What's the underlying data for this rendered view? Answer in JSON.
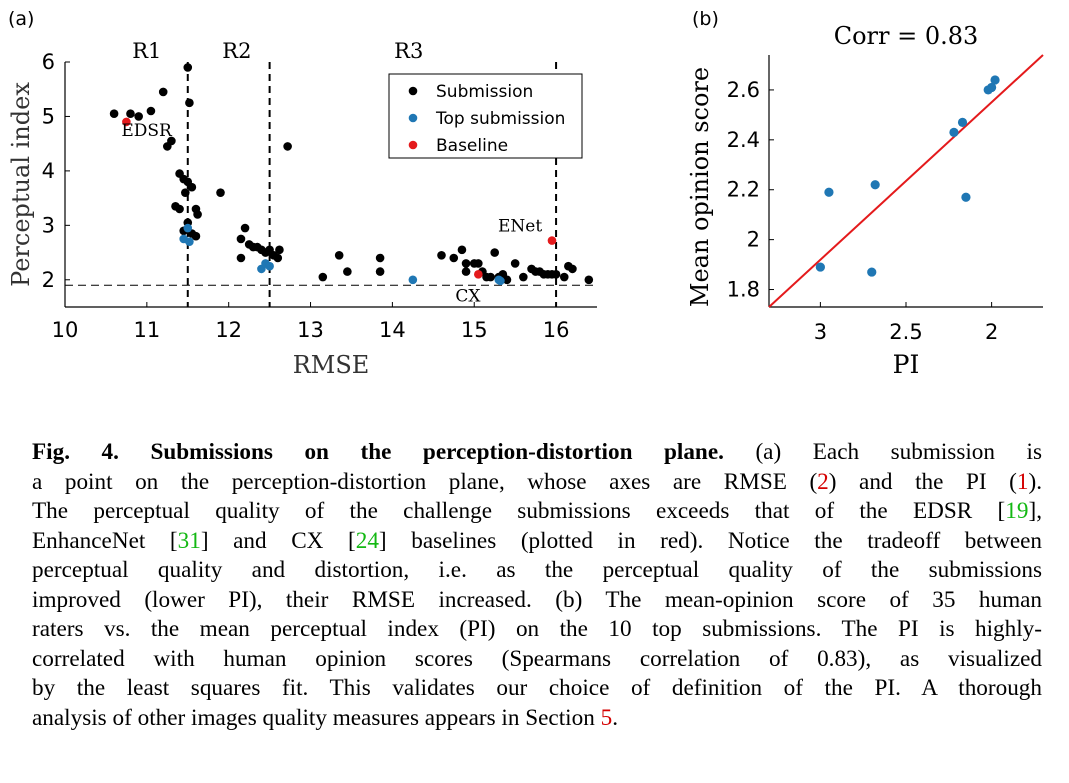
{
  "panel_a_label": "(a)",
  "panel_b_label": "(b)",
  "chart_data": [
    {
      "type": "scatter",
      "title": "",
      "xlabel": "RMSE",
      "ylabel": "Perceptual index",
      "xlim": [
        10,
        16.5
      ],
      "ylim": [
        1.5,
        6
      ],
      "xticks": [
        "10",
        "11",
        "12",
        "13",
        "14",
        "15",
        "16"
      ],
      "yticks": [
        "2",
        "3",
        "4",
        "5",
        "6"
      ],
      "grid": false,
      "legend_position": "top-right",
      "regions": [
        {
          "label": "R1",
          "x_center": 11.0
        },
        {
          "label": "R2",
          "x_center": 12.1
        },
        {
          "label": "R3",
          "x_center": 14.2
        }
      ],
      "vertical_lines": [
        11.5,
        12.5,
        16.0
      ],
      "horizontal_line": 1.9,
      "series": [
        {
          "name": "Submission",
          "color": "#000000",
          "points": [
            [
              10.6,
              5.05
            ],
            [
              10.8,
              5.05
            ],
            [
              10.9,
              5.0
            ],
            [
              11.05,
              5.1
            ],
            [
              11.2,
              5.45
            ],
            [
              11.25,
              4.45
            ],
            [
              11.3,
              4.55
            ],
            [
              11.5,
              5.9
            ],
            [
              11.52,
              5.25
            ],
            [
              11.4,
              3.95
            ],
            [
              11.45,
              3.85
            ],
            [
              11.5,
              3.8
            ],
            [
              11.55,
              3.7
            ],
            [
              11.47,
              3.6
            ],
            [
              11.35,
              3.35
            ],
            [
              11.4,
              3.3
            ],
            [
              11.6,
              3.3
            ],
            [
              11.62,
              3.2
            ],
            [
              11.5,
              3.05
            ],
            [
              11.45,
              2.9
            ],
            [
              11.55,
              2.85
            ],
            [
              11.6,
              2.8
            ],
            [
              11.9,
              3.6
            ],
            [
              12.72,
              4.45
            ],
            [
              12.15,
              2.75
            ],
            [
              12.2,
              2.95
            ],
            [
              12.25,
              2.65
            ],
            [
              12.3,
              2.6
            ],
            [
              12.35,
              2.6
            ],
            [
              12.4,
              2.55
            ],
            [
              12.45,
              2.5
            ],
            [
              12.5,
              2.55
            ],
            [
              12.55,
              2.45
            ],
            [
              12.6,
              2.4
            ],
            [
              12.62,
              2.55
            ],
            [
              12.15,
              2.4
            ],
            [
              13.15,
              2.05
            ],
            [
              13.35,
              2.45
            ],
            [
              13.45,
              2.15
            ],
            [
              13.85,
              2.4
            ],
            [
              13.85,
              2.15
            ],
            [
              14.6,
              2.45
            ],
            [
              14.75,
              2.4
            ],
            [
              14.85,
              2.55
            ],
            [
              14.9,
              2.3
            ],
            [
              15.0,
              2.3
            ],
            [
              15.05,
              2.3
            ],
            [
              14.9,
              2.15
            ],
            [
              15.1,
              2.15
            ],
            [
              15.2,
              2.05
            ],
            [
              15.25,
              2.5
            ],
            [
              15.35,
              2.1
            ],
            [
              15.4,
              2.0
            ],
            [
              15.5,
              2.3
            ],
            [
              15.6,
              2.05
            ],
            [
              15.7,
              2.2
            ],
            [
              15.75,
              2.15
            ],
            [
              15.8,
              2.15
            ],
            [
              15.85,
              2.1
            ],
            [
              15.9,
              2.1
            ],
            [
              15.95,
              2.1
            ],
            [
              16.0,
              2.1
            ],
            [
              16.1,
              2.05
            ],
            [
              16.15,
              2.25
            ],
            [
              16.2,
              2.2
            ],
            [
              16.4,
              2.0
            ],
            [
              15.15,
              2.05
            ],
            [
              15.3,
              2.05
            ]
          ]
        },
        {
          "name": "Top submission",
          "color": "#1f77b4",
          "points": [
            [
              11.45,
              2.75
            ],
            [
              11.5,
              2.95
            ],
            [
              11.52,
              2.7
            ],
            [
              12.4,
              2.2
            ],
            [
              12.45,
              2.3
            ],
            [
              12.5,
              2.25
            ],
            [
              14.25,
              2.0
            ],
            [
              15.3,
              2.0
            ],
            [
              15.32,
              1.98
            ]
          ]
        },
        {
          "name": "Baseline",
          "color": "#e41a1c",
          "points": [
            [
              10.75,
              4.9
            ],
            [
              15.05,
              2.1
            ],
            [
              15.95,
              2.72
            ]
          ]
        }
      ],
      "annotations": [
        {
          "text": "EDSR",
          "x": 10.75,
          "y": 4.9
        },
        {
          "text": "CX",
          "x": 15.05,
          "y": 2.1
        },
        {
          "text": "ENet",
          "x": 15.95,
          "y": 2.72
        }
      ]
    },
    {
      "type": "scatter",
      "title": "Corr = 0.83",
      "xlabel": "PI",
      "ylabel": "Mean opinion score",
      "xlim": [
        3.3,
        1.7
      ],
      "xaxis_reversed": true,
      "ylim": [
        1.73,
        2.74
      ],
      "xticks": [
        3,
        2.5,
        2
      ],
      "xtick_labels": [
        "3",
        "2.5",
        "2"
      ],
      "yticks": [
        1.8,
        2.0,
        2.2,
        2.4,
        2.6
      ],
      "ytick_labels": [
        "1.8",
        "2",
        "2.2",
        "2.4",
        "2.6"
      ],
      "grid": false,
      "series": [
        {
          "color": "#1f77b4",
          "points": [
            [
              3.0,
              1.89
            ],
            [
              2.95,
              2.19
            ],
            [
              2.7,
              1.87
            ],
            [
              2.68,
              2.22
            ],
            [
              2.22,
              2.43
            ],
            [
              2.17,
              2.47
            ],
            [
              2.15,
              2.17
            ],
            [
              2.02,
              2.6
            ],
            [
              2.0,
              2.61
            ],
            [
              1.98,
              2.64
            ]
          ]
        }
      ],
      "fit_line": {
        "color": "#e41a1c",
        "x": [
          3.3,
          1.7
        ],
        "y": [
          1.73,
          2.74
        ]
      }
    }
  ],
  "caption": {
    "lines": [
      [
        {
          "t": "Fig. 4. Submissions on the perception-distortion plane.",
          "b": true
        },
        {
          "t": " (a) Each submission is"
        }
      ],
      [
        {
          "t": "a point on the perception-distortion plane, whose axes are RMSE ("
        },
        {
          "t": "2",
          "c": "red"
        },
        {
          "t": ") and the PI ("
        },
        {
          "t": "1",
          "c": "red"
        },
        {
          "t": ")."
        }
      ],
      [
        {
          "t": "The perceptual quality of the challenge submissions exceeds that of the EDSR ["
        },
        {
          "t": "19",
          "c": "green"
        },
        {
          "t": "],"
        }
      ],
      [
        {
          "t": "EnhanceNet ["
        },
        {
          "t": "31",
          "c": "green"
        },
        {
          "t": "] and CX ["
        },
        {
          "t": "24",
          "c": "green"
        },
        {
          "t": "] baselines (plotted in red). Notice the tradeoff between"
        }
      ],
      [
        {
          "t": "perceptual quality and distortion, i.e. as the perceptual quality of the submissions"
        }
      ],
      [
        {
          "t": "improved (lower PI), their RMSE increased. (b) The mean-opinion score of 35 human"
        }
      ],
      [
        {
          "t": "raters vs. the mean perceptual index (PI) on the 10 top submissions. The PI is highly-"
        }
      ],
      [
        {
          "t": "correlated with human opinion scores (Spearmans correlation of 0.83), as visualized"
        }
      ],
      [
        {
          "t": "by the least squares fit. This validates our choice of definition of the PI. A thorough"
        }
      ],
      [
        {
          "t": "analysis of other images quality measures appears in Section "
        },
        {
          "t": "5",
          "c": "red"
        },
        {
          "t": "."
        }
      ]
    ]
  }
}
